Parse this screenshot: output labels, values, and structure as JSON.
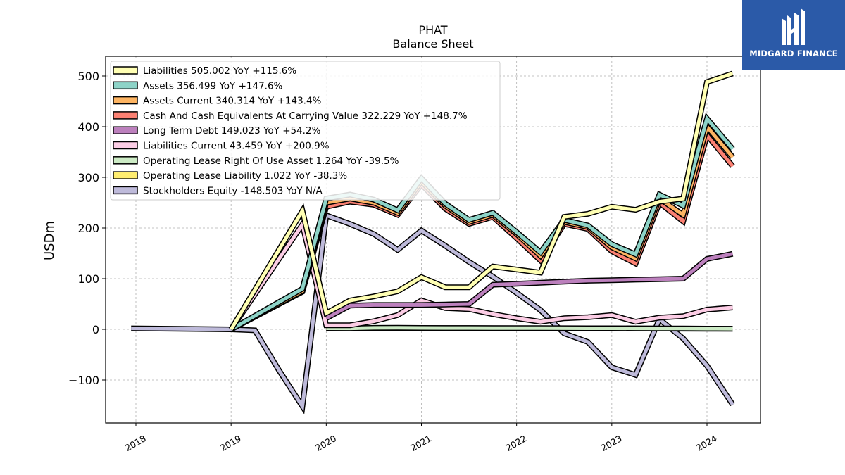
{
  "brand": {
    "name": "MIDGARD FINANCE",
    "bg_color": "#2b5aa8",
    "icon": "midgard-logo-icon"
  },
  "chart_data": {
    "type": "line",
    "title": "PHAT",
    "subtitle": "Balance  Sheet",
    "ylabel": "USDm",
    "xlabel": "",
    "ylim": [
      -180,
      535
    ],
    "xlim": [
      2017.7,
      2024.6
    ],
    "grid": true,
    "legend_position": "top-left",
    "x_ticks": [
      2018,
      2019,
      2020,
      2021,
      2022,
      2023,
      2024
    ],
    "x_tick_labels": [
      "2018",
      "2019",
      "2020",
      "2021",
      "2022",
      "2023",
      "2024"
    ],
    "y_ticks": [
      -100,
      0,
      100,
      200,
      300,
      400,
      500
    ],
    "y_tick_labels": [
      "−100",
      "0",
      "100",
      "200",
      "300",
      "400",
      "500"
    ],
    "series": [
      {
        "name": "Liabilities",
        "legend_label": "Liabilities  505.002 YoY +115.6%",
        "color": "#ffffb3",
        "points": [
          [
            2019.0,
            0
          ],
          [
            2019.75,
            234
          ],
          [
            2020.0,
            32
          ],
          [
            2020.25,
            57
          ],
          [
            2020.5,
            65
          ],
          [
            2020.75,
            75
          ],
          [
            2021.0,
            103
          ],
          [
            2021.25,
            83
          ],
          [
            2021.5,
            83
          ],
          [
            2021.75,
            124
          ],
          [
            2022.0,
            118
          ],
          [
            2022.25,
            112
          ],
          [
            2022.5,
            222
          ],
          [
            2022.75,
            228
          ],
          [
            2023.0,
            242
          ],
          [
            2023.25,
            236
          ],
          [
            2023.5,
            252
          ],
          [
            2023.75,
            258
          ],
          [
            2024.0,
            488
          ],
          [
            2024.27,
            505
          ]
        ]
      },
      {
        "name": "Assets",
        "legend_label": "Assets  356.499 YoY +147.6%",
        "color": "#8dd3c7",
        "points": [
          [
            2019.0,
            0
          ],
          [
            2019.75,
            80
          ],
          [
            2020.0,
            258
          ],
          [
            2020.25,
            266
          ],
          [
            2020.5,
            256
          ],
          [
            2020.75,
            235
          ],
          [
            2021.0,
            298
          ],
          [
            2021.25,
            248
          ],
          [
            2021.5,
            216
          ],
          [
            2021.75,
            230
          ],
          [
            2022.0,
            192
          ],
          [
            2022.25,
            152
          ],
          [
            2022.5,
            216
          ],
          [
            2022.75,
            205
          ],
          [
            2023.0,
            168
          ],
          [
            2023.25,
            148
          ],
          [
            2023.5,
            266
          ],
          [
            2023.75,
            244
          ],
          [
            2024.0,
            416
          ],
          [
            2024.27,
            356
          ]
        ]
      },
      {
        "name": "Assets Current",
        "legend_label": "Assets Current  340.314 YoY +143.4%",
        "color": "#fdb462",
        "points": [
          [
            2019.0,
            0
          ],
          [
            2019.75,
            76
          ],
          [
            2020.0,
            250
          ],
          [
            2020.25,
            258
          ],
          [
            2020.5,
            250
          ],
          [
            2020.75,
            230
          ],
          [
            2021.0,
            292
          ],
          [
            2021.25,
            244
          ],
          [
            2021.5,
            212
          ],
          [
            2021.75,
            226
          ],
          [
            2022.0,
            188
          ],
          [
            2022.25,
            145
          ],
          [
            2022.5,
            212
          ],
          [
            2022.75,
            202
          ],
          [
            2023.0,
            162
          ],
          [
            2023.25,
            140
          ],
          [
            2023.5,
            258
          ],
          [
            2023.75,
            226
          ],
          [
            2024.0,
            400
          ],
          [
            2024.27,
            340
          ]
        ]
      },
      {
        "name": "Cash And Cash Equivalents At Carrying Value",
        "legend_label": "Cash And Cash Equivalents At Carrying Value  322.229 YoY +148.7%",
        "color": "#fb8072",
        "points": [
          [
            2019.0,
            0
          ],
          [
            2019.75,
            74
          ],
          [
            2020.0,
            242
          ],
          [
            2020.25,
            252
          ],
          [
            2020.5,
            246
          ],
          [
            2020.75,
            226
          ],
          [
            2021.0,
            286
          ],
          [
            2021.25,
            238
          ],
          [
            2021.5,
            208
          ],
          [
            2021.75,
            222
          ],
          [
            2022.0,
            180
          ],
          [
            2022.25,
            136
          ],
          [
            2022.5,
            208
          ],
          [
            2022.75,
            198
          ],
          [
            2023.0,
            154
          ],
          [
            2023.25,
            130
          ],
          [
            2023.5,
            250
          ],
          [
            2023.75,
            213
          ],
          [
            2024.0,
            383
          ],
          [
            2024.27,
            322
          ]
        ]
      },
      {
        "name": "Long Term Debt",
        "legend_label": "Long Term Debt  149.023 YoY +54.2%",
        "color": "#bc80bd",
        "points": [
          [
            2020.0,
            22
          ],
          [
            2020.25,
            47
          ],
          [
            2020.5,
            48
          ],
          [
            2020.75,
            48
          ],
          [
            2021.0,
            48
          ],
          [
            2021.25,
            49
          ],
          [
            2021.5,
            50
          ],
          [
            2021.75,
            88
          ],
          [
            2022.0,
            90
          ],
          [
            2022.25,
            92
          ],
          [
            2022.5,
            94
          ],
          [
            2022.75,
            96
          ],
          [
            2023.0,
            97
          ],
          [
            2023.25,
            98
          ],
          [
            2023.5,
            99
          ],
          [
            2023.75,
            100
          ],
          [
            2024.0,
            139
          ],
          [
            2024.27,
            149
          ]
        ]
      },
      {
        "name": "Liabilities Current",
        "legend_label": "Liabilities Current  43.459 YoY +200.9%",
        "color": "#fccde5",
        "points": [
          [
            2019.0,
            0
          ],
          [
            2019.75,
            207
          ],
          [
            2020.0,
            8
          ],
          [
            2020.25,
            8
          ],
          [
            2020.5,
            16
          ],
          [
            2020.75,
            28
          ],
          [
            2021.0,
            57
          ],
          [
            2021.25,
            42
          ],
          [
            2021.5,
            40
          ],
          [
            2021.75,
            30
          ],
          [
            2022.0,
            22
          ],
          [
            2022.25,
            15
          ],
          [
            2022.5,
            22
          ],
          [
            2022.75,
            24
          ],
          [
            2023.0,
            28
          ],
          [
            2023.25,
            15
          ],
          [
            2023.5,
            23
          ],
          [
            2023.75,
            26
          ],
          [
            2024.0,
            39
          ],
          [
            2024.27,
            43
          ]
        ]
      },
      {
        "name": "Operating Lease Right Of Use Asset",
        "legend_label": "Operating Lease Right Of Use Asset  1.264 YoY -39.5%",
        "color": "#ccebc5",
        "points": [
          [
            2020.0,
            2.1
          ],
          [
            2020.25,
            2.0
          ],
          [
            2020.5,
            2.9
          ],
          [
            2020.75,
            3.0
          ],
          [
            2021.0,
            2.8
          ],
          [
            2021.25,
            2.7
          ],
          [
            2021.5,
            2.6
          ],
          [
            2021.75,
            2.5
          ],
          [
            2022.0,
            2.4
          ],
          [
            2022.25,
            2.3
          ],
          [
            2022.5,
            2.2
          ],
          [
            2022.75,
            2.1
          ],
          [
            2023.0,
            2.1
          ],
          [
            2023.25,
            2.0
          ],
          [
            2023.5,
            1.8
          ],
          [
            2023.75,
            1.6
          ],
          [
            2024.0,
            1.4
          ],
          [
            2024.27,
            1.264
          ]
        ]
      },
      {
        "name": "Operating Lease Liability",
        "legend_label": "Operating Lease Liability  1.022 YoY -38.3%",
        "color": "#ffed6f",
        "points": [
          [
            2020.0,
            1.8
          ],
          [
            2020.25,
            1.7
          ],
          [
            2020.5,
            2.6
          ],
          [
            2020.75,
            2.7
          ],
          [
            2021.0,
            2.5
          ],
          [
            2021.25,
            2.4
          ],
          [
            2021.5,
            2.3
          ],
          [
            2021.75,
            2.2
          ],
          [
            2022.0,
            2.1
          ],
          [
            2022.25,
            2.0
          ],
          [
            2022.5,
            1.9
          ],
          [
            2022.75,
            1.8
          ],
          [
            2023.0,
            1.8
          ],
          [
            2023.25,
            1.7
          ],
          [
            2023.5,
            1.5
          ],
          [
            2023.75,
            1.3
          ],
          [
            2024.0,
            1.1
          ],
          [
            2024.27,
            1.022
          ]
        ]
      },
      {
        "name": "Stockholders Equity",
        "legend_label": "Stockholders Equity  -148.503 YoY N/A",
        "color": "#bebada",
        "points": [
          [
            2017.95,
            2
          ],
          [
            2019.0,
            0
          ],
          [
            2019.25,
            -2
          ],
          [
            2019.5,
            -80
          ],
          [
            2019.75,
            -152
          ],
          [
            2020.0,
            225
          ],
          [
            2020.25,
            208
          ],
          [
            2020.5,
            188
          ],
          [
            2020.75,
            157
          ],
          [
            2021.0,
            195
          ],
          [
            2021.25,
            165
          ],
          [
            2021.5,
            133
          ],
          [
            2021.75,
            104
          ],
          [
            2022.0,
            72
          ],
          [
            2022.25,
            38
          ],
          [
            2022.5,
            -8
          ],
          [
            2022.75,
            -25
          ],
          [
            2023.0,
            -75
          ],
          [
            2023.25,
            -90
          ],
          [
            2023.5,
            20
          ],
          [
            2023.75,
            -18
          ],
          [
            2024.0,
            -72
          ],
          [
            2024.27,
            -148.503
          ]
        ]
      }
    ]
  }
}
